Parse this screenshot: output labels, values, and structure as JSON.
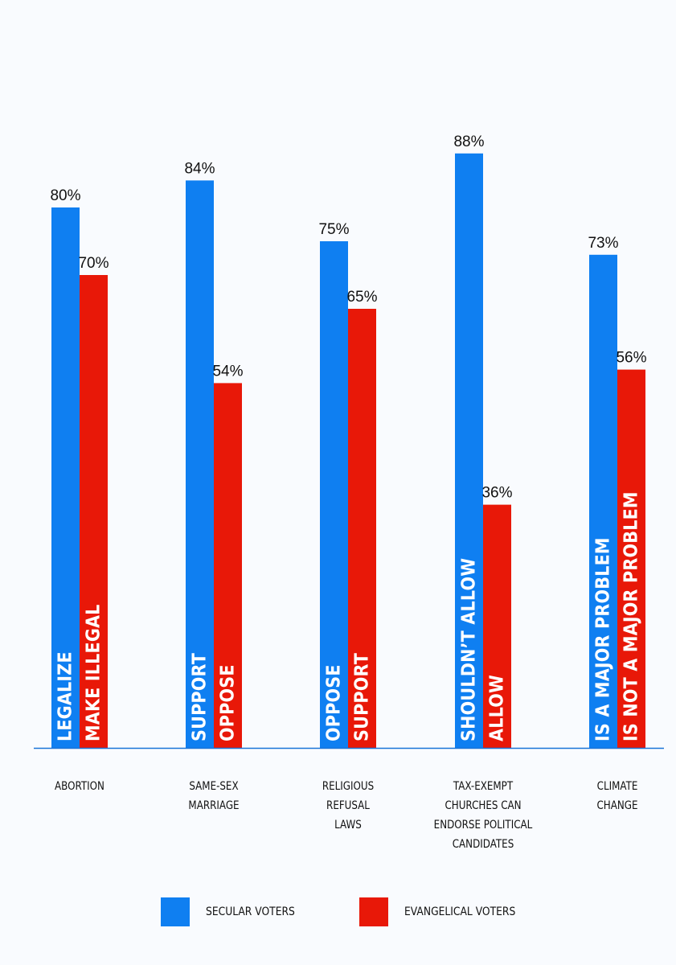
{
  "chart_data": {
    "type": "bar",
    "categories": [
      [
        "ABORTION"
      ],
      [
        "SAME-SEX",
        "MARRIAGE"
      ],
      [
        "RELIGIOUS",
        "REFUSAL",
        "LAWS"
      ],
      [
        "TAX-EXEMPT",
        "CHURCHES CAN",
        "ENDORSE POLITICAL",
        "CANDIDATES"
      ],
      [
        "CLIMATE",
        "CHANGE"
      ]
    ],
    "series": [
      {
        "name": "SECULAR VOTERS",
        "color": "#0f7ff1",
        "values": [
          80,
          84,
          75,
          88,
          73
        ],
        "bar_labels": [
          "LEGALIZE",
          "SUPPORT",
          "OPPOSE",
          "SHOULDN’T ALLOW",
          "IS A MAJOR PROBLEM"
        ]
      },
      {
        "name": "EVANGELICAL VOTERS",
        "color": "#e81808",
        "values": [
          70,
          54,
          65,
          36,
          56
        ],
        "bar_labels": [
          "MAKE ILLEGAL",
          "OPPOSE",
          "SUPPORT",
          "ALLOW",
          "IS NOT A MAJOR PROBLEM"
        ]
      }
    ],
    "value_suffix": "%",
    "ylim": [
      0,
      100
    ],
    "axis_color": "#1a74d8",
    "legend_position": "bottom",
    "grid": false
  }
}
